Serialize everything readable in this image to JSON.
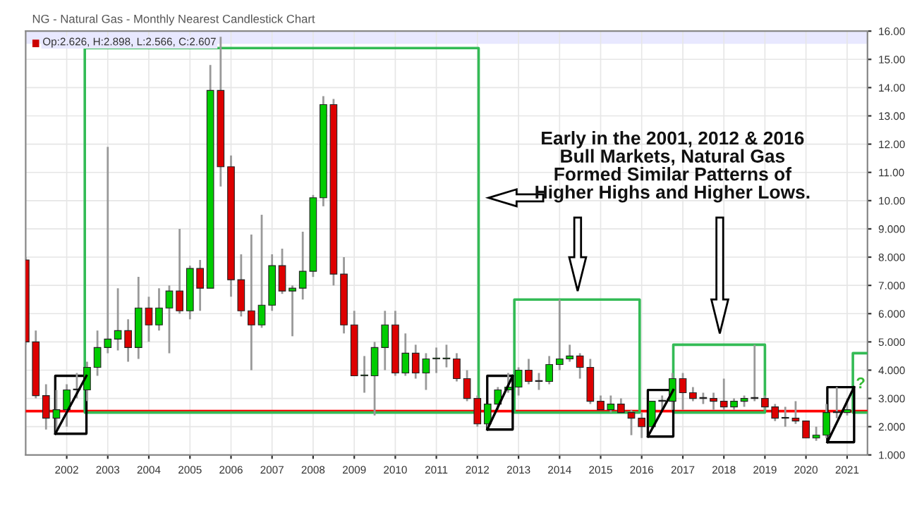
{
  "chart_data": {
    "type": "candlestick",
    "title": "NG - Natural Gas - Monthly Nearest Candlestick Chart",
    "x": [
      "2001-01",
      "2001-04",
      "2001-07",
      "2001-10",
      "2002-01",
      "2002-04",
      "2002-07",
      "2002-10",
      "2003-01",
      "2003-04",
      "2003-07",
      "2003-10",
      "2004-01",
      "2004-04",
      "2004-07",
      "2004-10",
      "2005-01",
      "2005-04",
      "2005-07",
      "2005-10",
      "2006-01",
      "2006-04",
      "2006-07",
      "2006-10",
      "2007-01",
      "2007-04",
      "2007-07",
      "2007-10",
      "2008-01",
      "2008-04",
      "2008-07",
      "2008-10",
      "2009-01",
      "2009-04",
      "2009-07",
      "2009-10",
      "2010-01",
      "2010-04",
      "2010-07",
      "2010-10",
      "2011-01",
      "2011-04",
      "2011-07",
      "2011-10",
      "2012-01",
      "2012-04",
      "2012-07",
      "2012-10",
      "2013-01",
      "2013-04",
      "2013-07",
      "2013-10",
      "2014-01",
      "2014-04",
      "2014-07",
      "2014-10",
      "2015-01",
      "2015-04",
      "2015-07",
      "2015-10",
      "2016-01",
      "2016-04",
      "2016-07",
      "2016-10",
      "2017-01",
      "2017-04",
      "2017-07",
      "2017-10",
      "2018-01",
      "2018-04",
      "2018-07",
      "2018-10",
      "2019-01",
      "2019-04",
      "2019-07",
      "2019-10",
      "2020-01",
      "2020-04",
      "2020-07",
      "2020-10",
      "2021-01"
    ],
    "ohlc": [
      [
        7.9,
        8.0,
        4.9,
        5.0
      ],
      [
        5.0,
        5.4,
        3.0,
        3.1
      ],
      [
        3.1,
        3.5,
        1.9,
        2.3
      ],
      [
        2.3,
        3.3,
        1.8,
        2.6
      ],
      [
        2.6,
        3.5,
        2.0,
        3.3
      ],
      [
        3.3,
        3.9,
        3.0,
        3.3
      ],
      [
        3.3,
        4.3,
        2.9,
        4.1
      ],
      [
        4.1,
        5.4,
        3.8,
        4.8
      ],
      [
        4.8,
        11.9,
        4.6,
        5.1
      ],
      [
        5.1,
        6.9,
        4.7,
        5.4
      ],
      [
        5.4,
        5.8,
        4.3,
        4.8
      ],
      [
        4.8,
        7.3,
        4.4,
        6.2
      ],
      [
        6.2,
        6.6,
        5.0,
        5.6
      ],
      [
        5.6,
        6.9,
        5.4,
        6.2
      ],
      [
        6.2,
        7.0,
        4.6,
        6.8
      ],
      [
        6.8,
        9.0,
        6.0,
        6.1
      ],
      [
        6.1,
        7.7,
        5.8,
        7.6
      ],
      [
        7.6,
        7.9,
        6.1,
        6.9
      ],
      [
        6.9,
        14.8,
        6.9,
        13.9
      ],
      [
        13.9,
        15.8,
        10.5,
        11.2
      ],
      [
        11.2,
        11.6,
        6.6,
        7.2
      ],
      [
        7.2,
        8.1,
        5.9,
        6.1
      ],
      [
        6.1,
        8.8,
        4.0,
        5.6
      ],
      [
        5.6,
        9.5,
        5.5,
        6.3
      ],
      [
        6.3,
        8.1,
        6.1,
        7.7
      ],
      [
        7.7,
        8.3,
        6.7,
        6.8
      ],
      [
        6.8,
        7.0,
        5.2,
        6.9
      ],
      [
        6.9,
        8.9,
        6.5,
        7.5
      ],
      [
        7.5,
        10.2,
        7.3,
        10.1
      ],
      [
        10.1,
        13.7,
        9.8,
        13.4
      ],
      [
        13.4,
        13.6,
        7.0,
        7.4
      ],
      [
        7.4,
        8.0,
        5.3,
        5.6
      ],
      [
        5.6,
        6.1,
        3.8,
        3.8
      ],
      [
        3.8,
        4.5,
        3.2,
        3.8
      ],
      [
        3.8,
        5.0,
        2.4,
        4.8
      ],
      [
        4.8,
        6.1,
        4.0,
        5.6
      ],
      [
        5.6,
        6.1,
        3.8,
        3.9
      ],
      [
        3.9,
        5.3,
        3.8,
        4.6
      ],
      [
        4.6,
        4.9,
        3.7,
        3.9
      ],
      [
        3.9,
        4.6,
        3.3,
        4.4
      ],
      [
        4.4,
        4.8,
        3.9,
        4.4
      ],
      [
        4.4,
        4.9,
        4.1,
        4.4
      ],
      [
        4.4,
        4.6,
        3.6,
        3.7
      ],
      [
        3.7,
        4.0,
        2.9,
        3.0
      ],
      [
        3.0,
        3.1,
        2.0,
        2.1
      ],
      [
        2.1,
        2.8,
        1.9,
        2.8
      ],
      [
        2.8,
        3.4,
        2.6,
        3.3
      ],
      [
        3.3,
        3.9,
        3.2,
        3.4
      ],
      [
        3.4,
        4.1,
        3.1,
        4.0
      ],
      [
        4.0,
        4.4,
        3.5,
        3.6
      ],
      [
        3.6,
        3.9,
        3.3,
        3.6
      ],
      [
        3.6,
        4.5,
        3.5,
        4.2
      ],
      [
        4.2,
        6.5,
        4.0,
        4.4
      ],
      [
        4.4,
        4.9,
        4.3,
        4.5
      ],
      [
        4.5,
        4.6,
        3.7,
        4.1
      ],
      [
        4.1,
        4.4,
        2.8,
        2.9
      ],
      [
        2.9,
        3.1,
        2.6,
        2.6
      ],
      [
        2.6,
        3.1,
        2.5,
        2.8
      ],
      [
        2.8,
        3.0,
        2.5,
        2.5
      ],
      [
        2.5,
        2.6,
        1.7,
        2.3
      ],
      [
        2.3,
        2.5,
        1.6,
        2.0
      ],
      [
        2.0,
        2.9,
        1.9,
        2.9
      ],
      [
        2.9,
        3.1,
        2.6,
        2.9
      ],
      [
        2.9,
        3.9,
        2.6,
        3.7
      ],
      [
        3.7,
        3.9,
        2.6,
        3.2
      ],
      [
        3.2,
        3.4,
        2.9,
        3.0
      ],
      [
        3.0,
        3.2,
        2.8,
        3.0
      ],
      [
        3.0,
        3.2,
        2.6,
        2.9
      ],
      [
        2.9,
        3.7,
        2.6,
        2.7
      ],
      [
        2.7,
        3.0,
        2.6,
        2.9
      ],
      [
        2.9,
        3.1,
        2.7,
        3.0
      ],
      [
        3.0,
        4.9,
        2.9,
        3.0
      ],
      [
        3.0,
        3.1,
        2.6,
        2.7
      ],
      [
        2.7,
        2.8,
        2.2,
        2.3
      ],
      [
        2.3,
        2.7,
        2.0,
        2.3
      ],
      [
        2.3,
        2.9,
        2.1,
        2.2
      ],
      [
        2.2,
        2.2,
        1.6,
        1.6
      ],
      [
        1.6,
        2.0,
        1.5,
        1.7
      ],
      [
        1.7,
        2.8,
        1.6,
        2.5
      ],
      [
        2.5,
        3.4,
        2.3,
        2.5
      ],
      [
        2.5,
        3.0,
        2.4,
        2.6
      ]
    ],
    "colors": [
      "#dd0000",
      "#dd0000",
      "#dd0000",
      "#00cc00",
      "#00cc00",
      "#00cc00",
      "#00cc00",
      "#00cc00",
      "#00cc00",
      "#00cc00",
      "#dd0000",
      "#00cc00",
      "#dd0000",
      "#00cc00",
      "#00cc00",
      "#dd0000",
      "#00cc00",
      "#dd0000",
      "#00cc00",
      "#dd0000",
      "#dd0000",
      "#dd0000",
      "#dd0000",
      "#00cc00",
      "#00cc00",
      "#dd0000",
      "#00cc00",
      "#00cc00",
      "#00cc00",
      "#00cc00",
      "#dd0000",
      "#dd0000",
      "#dd0000",
      "#00cc00",
      "#00cc00",
      "#00cc00",
      "#dd0000",
      "#00cc00",
      "#dd0000",
      "#00cc00",
      "#00cc00",
      "#00cc00",
      "#dd0000",
      "#dd0000",
      "#dd0000",
      "#00cc00",
      "#00cc00",
      "#00cc00",
      "#00cc00",
      "#dd0000",
      "#00cc00",
      "#00cc00",
      "#00cc00",
      "#00cc00",
      "#dd0000",
      "#dd0000",
      "#dd0000",
      "#00cc00",
      "#dd0000",
      "#dd0000",
      "#dd0000",
      "#00cc00",
      "#00cc00",
      "#00cc00",
      "#dd0000",
      "#dd0000",
      "#00cc00",
      "#dd0000",
      "#dd0000",
      "#00cc00",
      "#00cc00",
      "#00cc00",
      "#dd0000",
      "#dd0000",
      "#00cc00",
      "#dd0000",
      "#dd0000",
      "#00cc00",
      "#00cc00",
      "#00cc00",
      "#00cc00"
    ],
    "xlim": [
      "2001-01",
      "2021-07"
    ],
    "xticks": [
      {
        "value": "2002-01",
        "label": "2002"
      },
      {
        "value": "2003-01",
        "label": "2003"
      },
      {
        "value": "2004-01",
        "label": "2004"
      },
      {
        "value": "2005-01",
        "label": "2005"
      },
      {
        "value": "2006-01",
        "label": "2006"
      },
      {
        "value": "2007-01",
        "label": "2007"
      },
      {
        "value": "2008-01",
        "label": "2008"
      },
      {
        "value": "2009-01",
        "label": "2009"
      },
      {
        "value": "2010-01",
        "label": "2010"
      },
      {
        "value": "2011-01",
        "label": "2011"
      },
      {
        "value": "2012-01",
        "label": "2012"
      },
      {
        "value": "2013-01",
        "label": "2013"
      },
      {
        "value": "2014-01",
        "label": "2014"
      },
      {
        "value": "2015-01",
        "label": "2015"
      },
      {
        "value": "2016-01",
        "label": "2016"
      },
      {
        "value": "2017-01",
        "label": "2017"
      },
      {
        "value": "2018-01",
        "label": "2018"
      },
      {
        "value": "2019-01",
        "label": "2019"
      },
      {
        "value": "2020-01",
        "label": "2020"
      },
      {
        "value": "2021-01",
        "label": "2021"
      }
    ],
    "ylim": [
      1,
      16
    ],
    "yticks": [
      {
        "value": 1,
        "label": "1.000"
      },
      {
        "value": 2,
        "label": "2.000"
      },
      {
        "value": 3,
        "label": "3.000"
      },
      {
        "value": 4,
        "label": "4.000"
      },
      {
        "value": 5,
        "label": "5.000"
      },
      {
        "value": 6,
        "label": "6.000"
      },
      {
        "value": 7,
        "label": "7.000"
      },
      {
        "value": 8,
        "label": "8.000"
      },
      {
        "value": 9,
        "label": "9.000"
      },
      {
        "value": 10,
        "label": "10.00"
      },
      {
        "value": 11,
        "label": "11.00"
      },
      {
        "value": 12,
        "label": "12.00"
      },
      {
        "value": 13,
        "label": "13.00"
      },
      {
        "value": 14,
        "label": "14.00"
      },
      {
        "value": 15,
        "label": "15.00"
      },
      {
        "value": 16,
        "label": "16.00"
      }
    ],
    "grid": true,
    "bands": [
      {
        "axis": "y",
        "from": 15.55,
        "to": 16,
        "color": "#e8e8ff"
      }
    ],
    "ref_lines": [
      {
        "axis": "y",
        "value": 2.55,
        "color": "#ff0000"
      }
    ],
    "annotations": [
      "Op:2.626, H:2.898, L:2.566, C:2.607",
      "Early in the 2001, 2012 & 2016\nBull Markets, Natural Gas\nFormed Similar Patterns of\nHigher Highs and Higher Lows.",
      "?"
    ]
  }
}
